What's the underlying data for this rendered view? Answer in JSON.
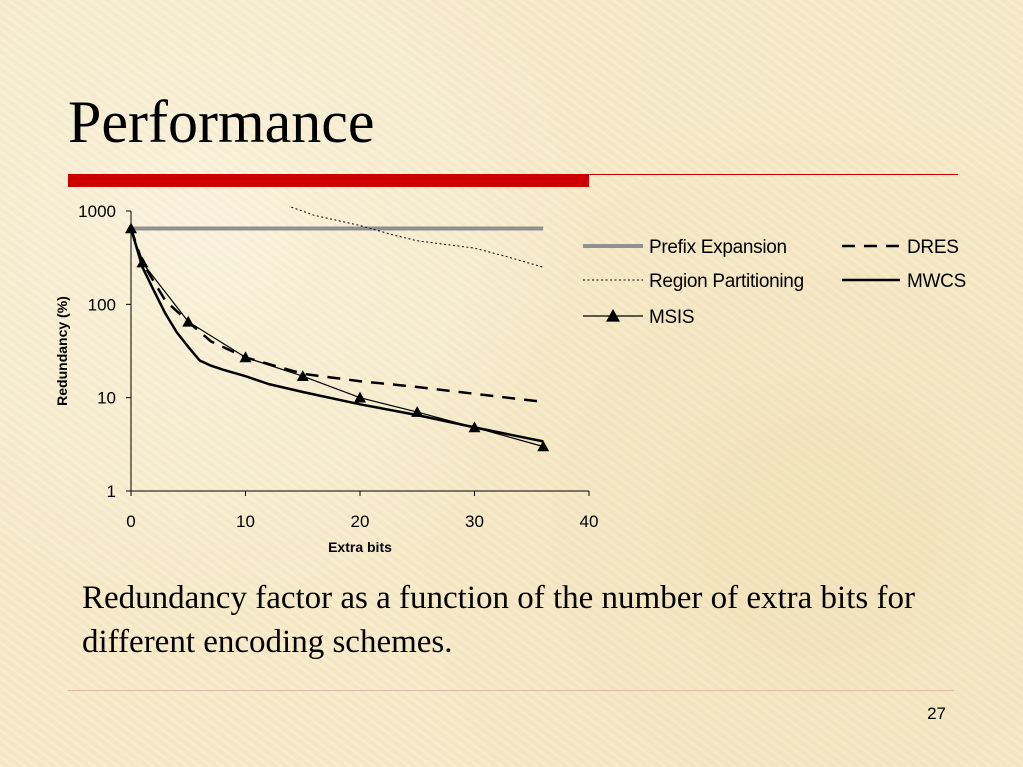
{
  "slide": {
    "title": "Performance",
    "caption": "Redundancy factor as a function of the number of extra bits for different encoding schemes.",
    "page_number": "27",
    "accent_color": "#cc0000"
  },
  "chart_data": {
    "type": "line",
    "title": "",
    "xlabel": "Extra bits",
    "ylabel": "Redundancy  (%)",
    "xlim": [
      0,
      40
    ],
    "ylim": [
      1,
      1000
    ],
    "yscale": "log",
    "grid": false,
    "legend_position": "top-right",
    "x_ticks": [
      "0",
      "10",
      "20",
      "30",
      "40"
    ],
    "y_ticks": [
      "1",
      "10",
      "100",
      "1000"
    ],
    "series": [
      {
        "name": "Prefix Expansion",
        "style": "solid-thick",
        "color": "#909090",
        "x": [
          0,
          36
        ],
        "y": [
          650,
          650
        ]
      },
      {
        "name": "DRES",
        "style": "dashed",
        "color": "#000000",
        "x": [
          0,
          1,
          3,
          5,
          7,
          10,
          15,
          20,
          25,
          30,
          36
        ],
        "y": [
          650,
          280,
          110,
          65,
          40,
          27,
          18,
          15,
          13,
          11,
          9
        ]
      },
      {
        "name": "Region Partitioning",
        "style": "dotted",
        "color": "#000000",
        "x": [
          14,
          16,
          20,
          23,
          25,
          30,
          33,
          36
        ],
        "y": [
          1100,
          900,
          700,
          550,
          480,
          400,
          320,
          250
        ]
      },
      {
        "name": "MWCS",
        "style": "solid",
        "color": "#000000",
        "x": [
          0,
          1,
          2,
          3,
          4,
          5,
          6,
          7,
          8,
          10,
          12,
          15,
          20,
          25,
          30,
          36
        ],
        "y": [
          650,
          250,
          140,
          80,
          50,
          35,
          25,
          22,
          20,
          17,
          14,
          11.5,
          8.5,
          6.5,
          4.8,
          3.4
        ]
      },
      {
        "name": "MSIS",
        "style": "solid-triangle",
        "color": "#000000",
        "x": [
          0,
          1,
          5,
          10,
          15,
          20,
          25,
          30,
          36
        ],
        "y": [
          650,
          280,
          65,
          27,
          17,
          10,
          7,
          4.8,
          3
        ]
      }
    ]
  }
}
